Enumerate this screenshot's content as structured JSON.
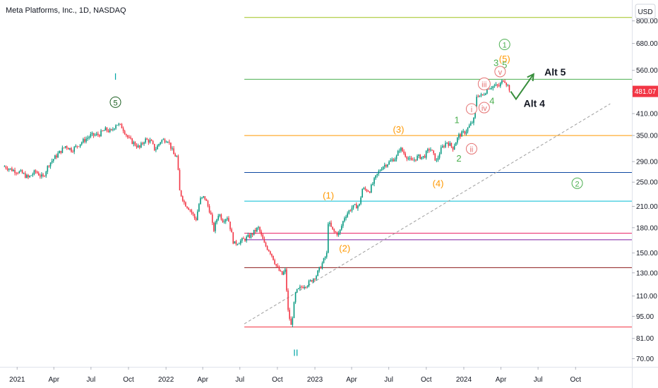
{
  "header": {
    "title": "Meta Platforms, Inc., 1D, NASDAQ",
    "currency": "USD"
  },
  "last_price": {
    "value": 481.07,
    "label": "481.07",
    "color": "#f23645"
  },
  "chart_data": {
    "type": "line",
    "y_scale": "log",
    "ylim": [
      66,
      930
    ],
    "y_ticks": [
      800,
      680,
      560,
      480,
      410,
      350,
      290,
      250,
      210,
      180,
      150,
      130,
      110,
      95,
      81,
      70
    ],
    "y_tick_labels": [
      "800.00",
      "680.00",
      "560.00",
      "480.00",
      "410.00",
      "350.00",
      "290.00",
      "250.00",
      "210.00",
      "180.00",
      "150.00",
      "130.00",
      "110.00",
      "95.00",
      "81.00",
      "70.00"
    ],
    "x_ticks": [
      {
        "label": "2021",
        "date": "2021-01-01"
      },
      {
        "label": "Apr",
        "date": "2021-04-01"
      },
      {
        "label": "Jul",
        "date": "2021-07-01"
      },
      {
        "label": "Oct",
        "date": "2021-10-01"
      },
      {
        "label": "2022",
        "date": "2022-01-01"
      },
      {
        "label": "Apr",
        "date": "2022-04-01"
      },
      {
        "label": "Jul",
        "date": "2022-07-01"
      },
      {
        "label": "Oct",
        "date": "2022-10-01"
      },
      {
        "label": "2023",
        "date": "2023-01-01"
      },
      {
        "label": "Apr",
        "date": "2023-04-01"
      },
      {
        "label": "Jul",
        "date": "2023-07-01"
      },
      {
        "label": "Oct",
        "date": "2023-10-01"
      },
      {
        "label": "2024",
        "date": "2024-01-01"
      },
      {
        "label": "Apr",
        "date": "2024-04-01"
      },
      {
        "label": "Jul",
        "date": "2024-07-01"
      },
      {
        "label": "Oct",
        "date": "2024-10-01"
      }
    ],
    "price_path": [
      [
        "2020-12-01",
        280
      ],
      [
        "2020-12-20",
        273
      ],
      [
        "2021-01-10",
        268
      ],
      [
        "2021-01-28",
        258
      ],
      [
        "2021-02-15",
        270
      ],
      [
        "2021-03-05",
        258
      ],
      [
        "2021-03-20",
        285
      ],
      [
        "2021-04-10",
        305
      ],
      [
        "2021-04-30",
        325
      ],
      [
        "2021-05-15",
        315
      ],
      [
        "2021-06-10",
        335
      ],
      [
        "2021-06-30",
        350
      ],
      [
        "2021-07-20",
        352
      ],
      [
        "2021-08-05",
        365
      ],
      [
        "2021-08-20",
        360
      ],
      [
        "2021-09-01",
        382
      ],
      [
        "2021-09-15",
        372
      ],
      [
        "2021-10-01",
        342
      ],
      [
        "2021-10-15",
        330
      ],
      [
        "2021-10-28",
        320
      ],
      [
        "2021-11-10",
        340
      ],
      [
        "2021-11-25",
        335
      ],
      [
        "2021-12-05",
        315
      ],
      [
        "2021-12-20",
        338
      ],
      [
        "2022-01-05",
        340
      ],
      [
        "2022-01-20",
        305
      ],
      [
        "2022-01-28",
        300
      ],
      [
        "2022-02-03",
        235
      ],
      [
        "2022-02-15",
        215
      ],
      [
        "2022-03-01",
        205
      ],
      [
        "2022-03-15",
        190
      ],
      [
        "2022-03-25",
        220
      ],
      [
        "2022-04-05",
        225
      ],
      [
        "2022-04-20",
        200
      ],
      [
        "2022-04-27",
        175
      ],
      [
        "2022-05-10",
        200
      ],
      [
        "2022-05-20",
        190
      ],
      [
        "2022-06-01",
        195
      ],
      [
        "2022-06-16",
        160
      ],
      [
        "2022-06-30",
        163
      ],
      [
        "2022-07-10",
        165
      ],
      [
        "2022-07-27",
        170
      ],
      [
        "2022-08-15",
        180
      ],
      [
        "2022-08-30",
        160
      ],
      [
        "2022-09-15",
        150
      ],
      [
        "2022-09-30",
        135
      ],
      [
        "2022-10-12",
        128
      ],
      [
        "2022-10-20",
        132
      ],
      [
        "2022-10-27",
        99
      ],
      [
        "2022-11-04",
        88
      ],
      [
        "2022-11-15",
        113
      ],
      [
        "2022-12-01",
        118
      ],
      [
        "2022-12-15",
        120
      ],
      [
        "2023-01-05",
        128
      ],
      [
        "2023-01-20",
        140
      ],
      [
        "2023-01-31",
        150
      ],
      [
        "2023-02-02",
        188
      ],
      [
        "2023-02-15",
        175
      ],
      [
        "2023-03-01",
        172
      ],
      [
        "2023-03-15",
        195
      ],
      [
        "2023-04-01",
        208
      ],
      [
        "2023-04-20",
        212
      ],
      [
        "2023-04-27",
        238
      ],
      [
        "2023-05-15",
        235
      ],
      [
        "2023-06-01",
        262
      ],
      [
        "2023-06-15",
        280
      ],
      [
        "2023-07-01",
        288
      ],
      [
        "2023-07-20",
        300
      ],
      [
        "2023-07-28",
        320
      ],
      [
        "2023-08-10",
        305
      ],
      [
        "2023-08-25",
        290
      ],
      [
        "2023-09-10",
        300
      ],
      [
        "2023-09-25",
        300
      ],
      [
        "2023-10-10",
        320
      ],
      [
        "2023-10-26",
        290
      ],
      [
        "2023-11-05",
        315
      ],
      [
        "2023-11-20",
        335
      ],
      [
        "2023-12-05",
        320
      ],
      [
        "2023-12-20",
        350
      ],
      [
        "2024-01-05",
        360
      ],
      [
        "2024-01-25",
        390
      ],
      [
        "2024-02-02",
        470
      ],
      [
        "2024-02-15",
        465
      ],
      [
        "2024-03-01",
        495
      ],
      [
        "2024-03-15",
        500
      ],
      [
        "2024-03-28",
        500
      ],
      [
        "2024-04-08",
        527
      ],
      [
        "2024-04-20",
        495
      ],
      [
        "2024-04-25",
        481
      ]
    ],
    "horizontal_levels": [
      {
        "price": 820,
        "color": "#9fc21f"
      },
      {
        "price": 525,
        "color": "#4caf50"
      },
      {
        "price": 350,
        "color": "#ff9800"
      },
      {
        "price": 268,
        "color": "#0d47a1"
      },
      {
        "price": 218,
        "color": "#00bcd4"
      },
      {
        "price": 173,
        "color": "#e91e63"
      },
      {
        "price": 165,
        "color": "#7b1fa2"
      },
      {
        "price": 135,
        "color": "#8b1a1a"
      },
      {
        "price": 88,
        "color": "#f23645"
      }
    ],
    "trendline": {
      "from": [
        "2022-07-12",
        90
      ],
      "to": [
        "2024-12-25",
        440
      ],
      "color": "#9e9e9e"
    },
    "projection": {
      "points": [
        [
          "2024-04-25",
          481
        ],
        [
          "2024-05-08",
          455
        ],
        [
          "2024-06-20",
          545
        ]
      ],
      "color": "#388e3c"
    },
    "labels": [
      {
        "text": "I",
        "date": "2021-08-30",
        "price": 535,
        "color": "#00a6a6"
      },
      {
        "text": "5",
        "date": "2021-08-30",
        "price": 445,
        "color": "#1b5e20",
        "circled": true
      },
      {
        "text": "II",
        "date": "2022-11-15",
        "price": 73,
        "color": "#00a6a6"
      },
      {
        "text": "(1)",
        "date": "2023-02-03",
        "price": 227,
        "color": "#ff9800"
      },
      {
        "text": "(2)",
        "date": "2023-03-15",
        "price": 155,
        "color": "#ff9800"
      },
      {
        "text": "(3)",
        "date": "2023-07-25",
        "price": 366,
        "color": "#ff9800"
      },
      {
        "text": "(4)",
        "date": "2023-10-30",
        "price": 248,
        "color": "#ff9800"
      },
      {
        "text": "(5)",
        "date": "2024-04-10",
        "price": 608,
        "color": "#ff9800"
      },
      {
        "text": "1",
        "date": "2024-04-10",
        "price": 675,
        "color": "#4caf50",
        "circled": true
      },
      {
        "text": "2",
        "date": "2024-10-05",
        "price": 248,
        "color": "#4caf50",
        "circled": true
      },
      {
        "text": "1",
        "date": "2023-12-15",
        "price": 392,
        "color": "#4caf50"
      },
      {
        "text": "2",
        "date": "2023-12-20",
        "price": 297,
        "color": "#4caf50"
      },
      {
        "text": "3",
        "date": "2024-03-20",
        "price": 592,
        "color": "#4caf50"
      },
      {
        "text": "4",
        "date": "2024-03-10",
        "price": 449,
        "color": "#4caf50"
      },
      {
        "text": "5",
        "date": "2024-04-10",
        "price": 583,
        "color": "#4caf50"
      },
      {
        "text": "i",
        "date": "2024-01-20",
        "price": 424,
        "color": "#e57373",
        "circled": true
      },
      {
        "text": "ii",
        "date": "2024-01-20",
        "price": 318,
        "color": "#e57373",
        "circled": true
      },
      {
        "text": "iii",
        "date": "2024-02-20",
        "price": 508,
        "color": "#e57373",
        "circled": true
      },
      {
        "text": "iv",
        "date": "2024-02-20",
        "price": 428,
        "color": "#e57373",
        "circled": true
      },
      {
        "text": "v",
        "date": "2024-03-30",
        "price": 555,
        "color": "#e57373",
        "circled": true
      },
      {
        "text": "Alt 5",
        "date": "2024-07-20",
        "price": 553,
        "color": "#131722",
        "big": true
      },
      {
        "text": "Alt 4",
        "date": "2024-05-30",
        "price": 441,
        "color": "#131722",
        "big": true
      }
    ]
  }
}
